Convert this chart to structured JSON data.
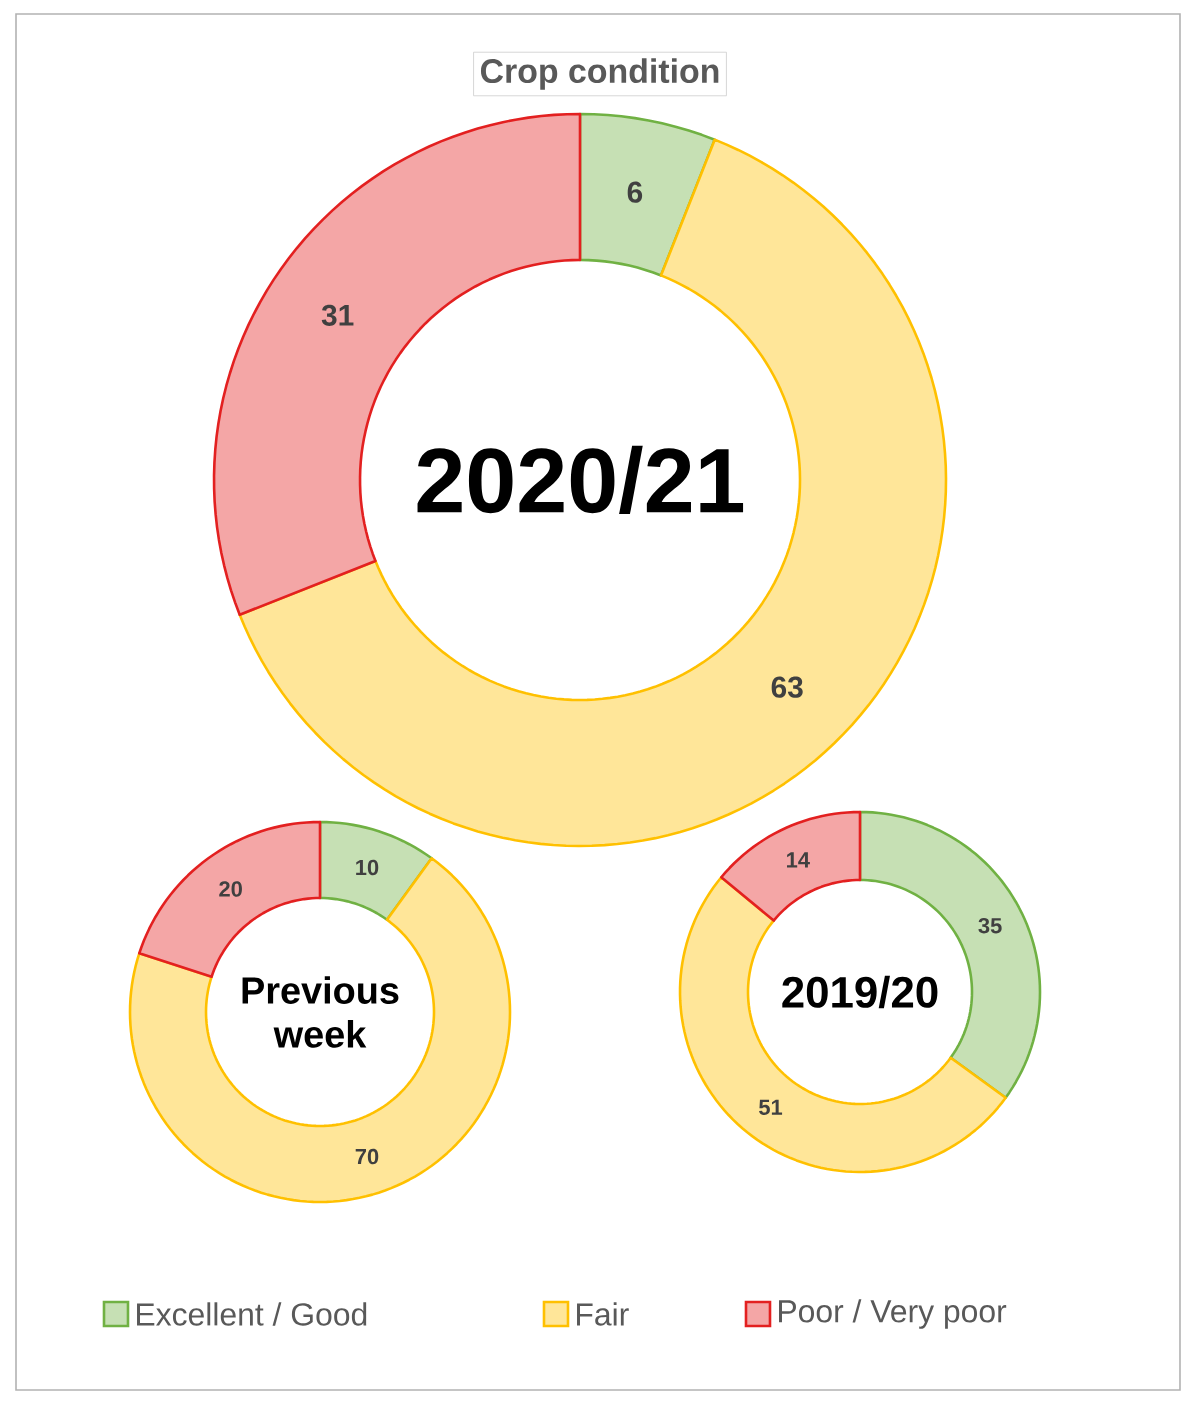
{
  "chart_data": [
    {
      "type": "donut",
      "title": "Crop condition",
      "annotations": [
        "2020/21"
      ],
      "categories": [
        "Excellent / Good",
        "Fair",
        "Poor / Very poor"
      ],
      "values": [
        6,
        63,
        31
      ],
      "colors": [
        "#c6e0b4",
        "#ffe699",
        "#f4a6a6"
      ],
      "data_labels": true,
      "legend": "bottom"
    },
    {
      "type": "donut",
      "annotations": [
        "Previous week"
      ],
      "values": [
        10,
        70,
        20
      ],
      "colors": [
        "#c6e0b4",
        "#ffe699",
        "#f4a6a6"
      ],
      "data_labels": true
    },
    {
      "type": "donut",
      "annotations": [
        "2019/20"
      ],
      "values": [
        35,
        51,
        14
      ],
      "colors": [
        "#c6e0b4",
        "#ffe699",
        "#f4a6a6"
      ],
      "data_labels": true
    }
  ]
}
